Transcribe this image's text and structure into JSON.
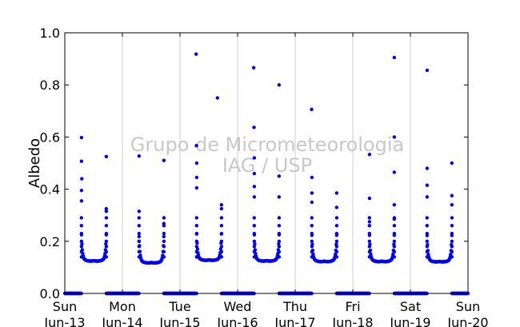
{
  "chart_data": {
    "type": "scatter",
    "title": "",
    "xlabel": "",
    "ylabel": "Albedo",
    "ylim": [
      0,
      1
    ],
    "yticks": [
      0.0,
      0.2,
      0.4,
      0.6,
      0.8,
      1.0
    ],
    "ytick_labels": [
      "0.0",
      "0.2",
      "0.4",
      "0.6",
      "0.8",
      "1.0"
    ],
    "xlim": [
      0,
      7
    ],
    "xticks": [
      {
        "day": 0,
        "weekday": "Sun",
        "date": "Jun-13"
      },
      {
        "day": 1,
        "weekday": "Mon",
        "date": "Jun-14"
      },
      {
        "day": 2,
        "weekday": "Tue",
        "date": "Jun-15"
      },
      {
        "day": 3,
        "weekday": "Wed",
        "date": "Jun-16"
      },
      {
        "day": 4,
        "weekday": "Thu",
        "date": "Jun-17"
      },
      {
        "day": 5,
        "weekday": "Fri",
        "date": "Jun-18"
      },
      {
        "day": 6,
        "weekday": "Sat",
        "date": "Jun-19"
      },
      {
        "day": 7,
        "weekday": "Sun",
        "date": "Jun-20"
      }
    ],
    "grid": "vertical",
    "series_color": "#0000ff",
    "days": [
      {
        "sunrise": 0.29,
        "sunset": 0.72,
        "min": 0.115,
        "spikes": [
          [
            0.29,
            0.598
          ],
          [
            0.29,
            0.507
          ],
          [
            0.295,
            0.44
          ],
          [
            0.72,
            0.525
          ],
          [
            0.72,
            0.325
          ],
          [
            0.72,
            0.315
          ]
        ]
      },
      {
        "sunrise": 1.29,
        "sunset": 1.72,
        "min": 0.108,
        "spikes": [
          [
            1.29,
            0.527
          ],
          [
            1.29,
            0.315
          ],
          [
            1.29,
            0.2
          ],
          [
            1.72,
            0.51
          ],
          [
            1.72,
            0.268
          ]
        ]
      },
      {
        "sunrise": 2.29,
        "sunset": 2.72,
        "min": 0.118,
        "spikes": [
          [
            2.28,
            0.918
          ],
          [
            2.285,
            0.567
          ],
          [
            2.29,
            0.5
          ],
          [
            2.65,
            0.75
          ],
          [
            2.72,
            0.34
          ]
        ]
      },
      {
        "sunrise": 3.29,
        "sunset": 3.72,
        "min": 0.115,
        "spikes": [
          [
            3.28,
            0.866
          ],
          [
            3.285,
            0.637
          ],
          [
            3.29,
            0.52
          ],
          [
            3.29,
            0.46
          ],
          [
            3.72,
            0.8
          ],
          [
            3.72,
            0.45
          ],
          [
            3.72,
            0.37
          ]
        ]
      },
      {
        "sunrise": 4.29,
        "sunset": 4.72,
        "min": 0.113,
        "spikes": [
          [
            4.285,
            0.706
          ],
          [
            4.29,
            0.445
          ],
          [
            4.29,
            0.385
          ],
          [
            4.72,
            0.385
          ]
        ]
      },
      {
        "sunrise": 5.29,
        "sunset": 5.72,
        "min": 0.113,
        "spikes": [
          [
            5.29,
            0.533
          ],
          [
            5.29,
            0.365
          ],
          [
            5.29,
            0.275
          ]
        ]
      },
      {
        "sunrise": 6.29,
        "sunset": 6.72,
        "min": 0.112,
        "spikes": [
          [
            6.72,
            0.905
          ],
          [
            6.72,
            0.465
          ],
          [
            6.72,
            0.34
          ],
          [
            6.72,
            0.285
          ]
        ]
      },
      {
        "sunrise": 7.29,
        "sunset": 7.72,
        "min": 0.12,
        "spikes": [
          [
            6.29,
            0.856
          ],
          [
            6.29,
            0.48
          ],
          [
            6.29,
            0.415
          ],
          [
            6.72,
            0.5
          ],
          [
            6.72,
            0.375
          ]
        ]
      }
    ]
  },
  "watermark": {
    "line1": "Grupo de Micrometeorologia",
    "line2": "IAG / USP"
  }
}
